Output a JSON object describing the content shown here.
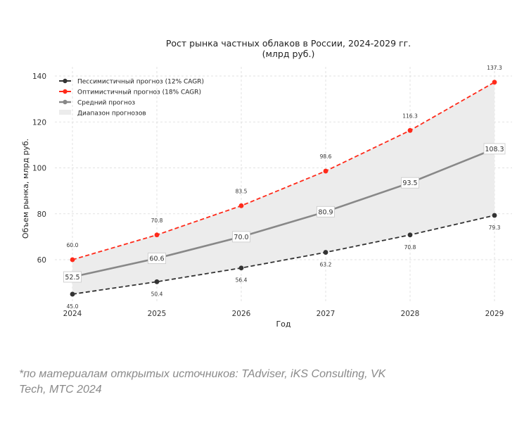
{
  "chart_data": {
    "type": "line",
    "title": "Рост рынка частных облаков в России, 2024-2029 гг.",
    "subtitle": "(млрд руб.)",
    "xlabel": "Год",
    "ylabel": "Объем рынка, млрд руб.",
    "x": [
      2024,
      2025,
      2026,
      2027,
      2028,
      2029
    ],
    "x_tick_labels": [
      "2024",
      "2025",
      "2026",
      "2027",
      "2028",
      "2029"
    ],
    "y_ticks": [
      60,
      80,
      100,
      120,
      140
    ],
    "y_tick_labels": [
      "60",
      "80",
      "100",
      "120",
      "140"
    ],
    "xlim": [
      2023.8,
      2029.2
    ],
    "ylim": [
      41.3,
      144.0
    ],
    "grid": true,
    "legend_position": "top-left",
    "series": [
      {
        "key": "pessimistic",
        "name": "Пессимистичный прогноз (12% CAGR)",
        "color": "#333333",
        "style": "dashed",
        "marker": "circle",
        "values": [
          45.0,
          50.4,
          56.4,
          63.2,
          70.8,
          79.3
        ],
        "labels": [
          "45.0",
          "50.4",
          "56.4",
          "63.2",
          "70.8",
          "79.3"
        ]
      },
      {
        "key": "optimistic",
        "name": "Оптимистичный прогноз (18% CAGR)",
        "color": "#ff2a1a",
        "style": "dashed",
        "marker": "circle",
        "values": [
          60.0,
          70.8,
          83.5,
          98.6,
          116.3,
          137.3
        ],
        "labels": [
          "60.0",
          "70.8",
          "83.5",
          "98.6",
          "116.3",
          "137.3"
        ]
      },
      {
        "key": "average",
        "name": "Средний прогноз",
        "color": "#888888",
        "style": "solid",
        "marker": "none",
        "values": [
          52.5,
          60.6,
          70.0,
          80.9,
          93.5,
          108.3
        ],
        "labels": [
          "52.5",
          "60.6",
          "70.0",
          "80.9",
          "93.5",
          "108.3"
        ]
      }
    ],
    "range_band": {
      "name": "Диапазон прогнозов",
      "color": "#ececec",
      "lower": "pessimistic",
      "upper": "optimistic"
    }
  },
  "footnote": "*по материалам открытых источников: TAdviser, iKS Consulting, VK Tech, МТС 2024"
}
